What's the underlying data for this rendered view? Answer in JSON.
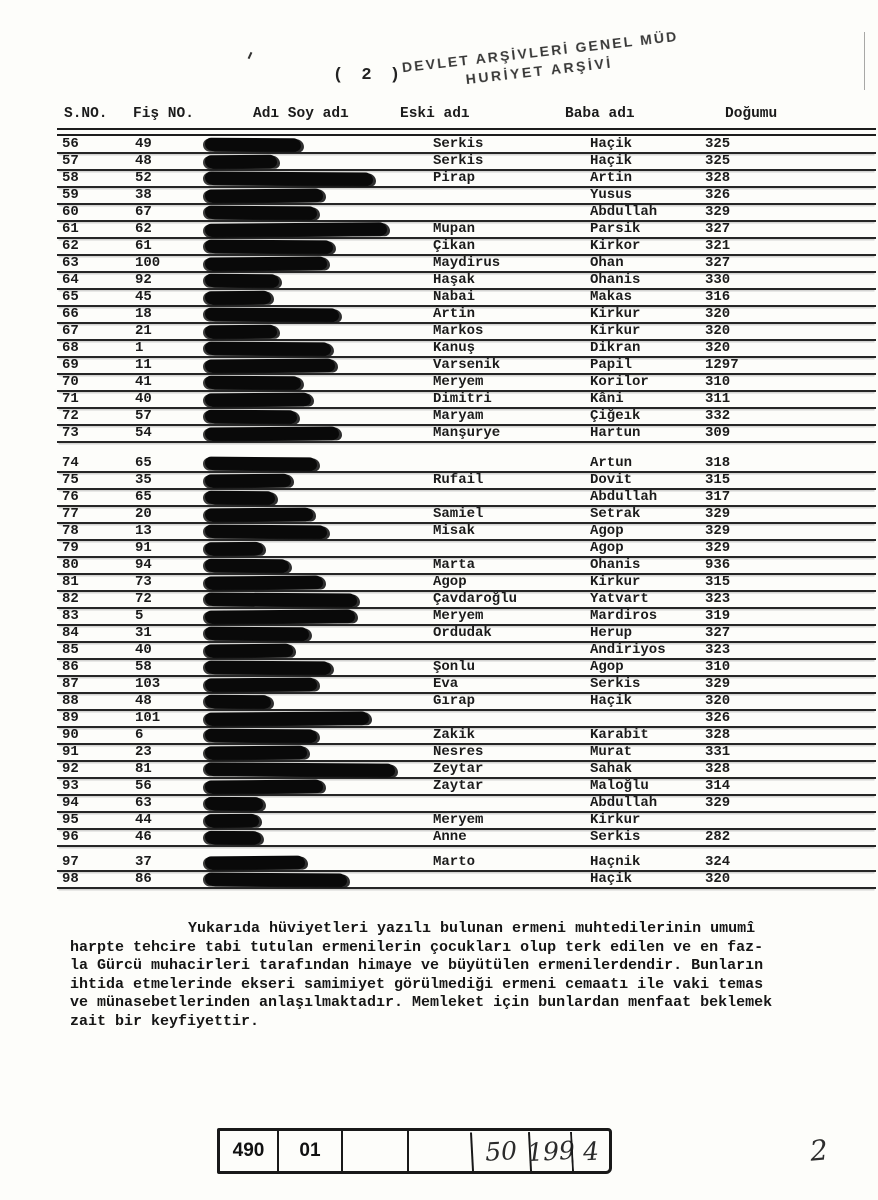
{
  "page": {
    "label": "( 2 )",
    "page_number_handwritten": "2"
  },
  "stamp": {
    "line1": "DEVLET ARŞİVLERİ GENEL MÜD",
    "line2": "HURİYET ARŞİVİ"
  },
  "table": {
    "columns": [
      "S.NO.",
      "Fiş NO.",
      "Adı Soy adı",
      "Eski adı",
      "Baba adı",
      "Doğumu"
    ],
    "rows": [
      {
        "s_no": "56",
        "fis_no": "49",
        "eski_adi": "Serkis",
        "baba_adi": "Haçik",
        "dogumu": "325",
        "redaction_width": 96,
        "gap_before": false
      },
      {
        "s_no": "57",
        "fis_no": "48",
        "eski_adi": "Serkis",
        "baba_adi": "Haçik",
        "dogumu": "325",
        "redaction_width": 72,
        "gap_before": false
      },
      {
        "s_no": "58",
        "fis_no": "52",
        "eski_adi": "Pirap",
        "baba_adi": "Artin",
        "dogumu": "328",
        "redaction_width": 168,
        "gap_before": false
      },
      {
        "s_no": "59",
        "fis_no": "38",
        "eski_adi": "",
        "baba_adi": "Yusus",
        "dogumu": "326",
        "redaction_width": 118,
        "gap_before": false
      },
      {
        "s_no": "60",
        "fis_no": "67",
        "eski_adi": "",
        "baba_adi": "Abdullah",
        "dogumu": "329",
        "redaction_width": 112,
        "gap_before": false
      },
      {
        "s_no": "61",
        "fis_no": "62",
        "eski_adi": "Mupan",
        "baba_adi": "Parsik",
        "dogumu": "327",
        "redaction_width": 182,
        "gap_before": false
      },
      {
        "s_no": "62",
        "fis_no": "61",
        "eski_adi": "Çikan",
        "baba_adi": "Kirkor",
        "dogumu": "321",
        "redaction_width": 128,
        "gap_before": false
      },
      {
        "s_no": "63",
        "fis_no": "100",
        "eski_adi": "Maydirus",
        "baba_adi": "Ohan",
        "dogumu": "327",
        "redaction_width": 122,
        "gap_before": false
      },
      {
        "s_no": "64",
        "fis_no": "92",
        "eski_adi": "Haşak",
        "baba_adi": "Ohanis",
        "dogumu": "330",
        "redaction_width": 74,
        "gap_before": false
      },
      {
        "s_no": "65",
        "fis_no": "45",
        "eski_adi": "Nabai",
        "baba_adi": "Makas",
        "dogumu": "316",
        "redaction_width": 66,
        "gap_before": false
      },
      {
        "s_no": "66",
        "fis_no": "18",
        "eski_adi": "Artin",
        "baba_adi": "Kirkur",
        "dogumu": "320",
        "redaction_width": 134,
        "gap_before": false
      },
      {
        "s_no": "67",
        "fis_no": "21",
        "eski_adi": "Markos",
        "baba_adi": "Kirkur",
        "dogumu": "320",
        "redaction_width": 72,
        "gap_before": false
      },
      {
        "s_no": "68",
        "fis_no": "1",
        "eski_adi": "Kanuş",
        "baba_adi": "Dikran",
        "dogumu": "320",
        "redaction_width": 126,
        "gap_before": false
      },
      {
        "s_no": "69",
        "fis_no": "11",
        "eski_adi": "Varsenik",
        "baba_adi": "Papil",
        "dogumu": "1297",
        "redaction_width": 130,
        "gap_before": false
      },
      {
        "s_no": "70",
        "fis_no": "41",
        "eski_adi": "Meryem",
        "baba_adi": "Korilor",
        "dogumu": "310",
        "redaction_width": 96,
        "gap_before": false
      },
      {
        "s_no": "71",
        "fis_no": "40",
        "eski_adi": "Dimitri",
        "baba_adi": "Kâni",
        "dogumu": "311",
        "redaction_width": 106,
        "gap_before": false
      },
      {
        "s_no": "72",
        "fis_no": "57",
        "eski_adi": "Maryam",
        "baba_adi": "Çiğeık",
        "dogumu": "332",
        "redaction_width": 92,
        "gap_before": false
      },
      {
        "s_no": "73",
        "fis_no": "54",
        "eski_adi": "Manşurye",
        "baba_adi": "Hartun",
        "dogumu": "309",
        "redaction_width": 134,
        "gap_before": false
      },
      {
        "s_no": "74",
        "fis_no": "65",
        "eski_adi": "",
        "baba_adi": "Artun",
        "dogumu": "318",
        "redaction_width": 112,
        "gap_before": true
      },
      {
        "s_no": "75",
        "fis_no": "35",
        "eski_adi": "Rufail",
        "baba_adi": "Dovit",
        "dogumu": "315",
        "redaction_width": 86,
        "gap_before": false
      },
      {
        "s_no": "76",
        "fis_no": "65",
        "eski_adi": "",
        "baba_adi": "Abdullah",
        "dogumu": "317",
        "redaction_width": 70,
        "gap_before": false
      },
      {
        "s_no": "77",
        "fis_no": "20",
        "eski_adi": "Samiel",
        "baba_adi": "Setrak",
        "dogumu": "329",
        "redaction_width": 108,
        "gap_before": false
      },
      {
        "s_no": "78",
        "fis_no": "13",
        "eski_adi": "Misak",
        "baba_adi": "Agop",
        "dogumu": "329",
        "redaction_width": 122,
        "gap_before": false
      },
      {
        "s_no": "79",
        "fis_no": "91",
        "eski_adi": "",
        "baba_adi": "Agop",
        "dogumu": "329",
        "redaction_width": 58,
        "gap_before": false
      },
      {
        "s_no": "80",
        "fis_no": "94",
        "eski_adi": "Marta",
        "baba_adi": "Ohanis",
        "dogumu": "936",
        "redaction_width": 84,
        "gap_before": false
      },
      {
        "s_no": "81",
        "fis_no": "73",
        "eski_adi": "Agop",
        "baba_adi": "Kirkur",
        "dogumu": "315",
        "redaction_width": 118,
        "gap_before": false
      },
      {
        "s_no": "82",
        "fis_no": "72",
        "eski_adi": "Çavdaroğlu",
        "baba_adi": "Yatvart",
        "dogumu": "323",
        "redaction_width": 152,
        "gap_before": false
      },
      {
        "s_no": "83",
        "fis_no": "5",
        "eski_adi": "Meryem",
        "baba_adi": "Mardiros",
        "dogumu": "319",
        "redaction_width": 150,
        "gap_before": false
      },
      {
        "s_no": "84",
        "fis_no": "31",
        "eski_adi": "Ordudak",
        "baba_adi": "Herup",
        "dogumu": "327",
        "redaction_width": 104,
        "gap_before": false
      },
      {
        "s_no": "85",
        "fis_no": "40",
        "eski_adi": "",
        "baba_adi": "Andiriyos",
        "dogumu": "323",
        "redaction_width": 88,
        "gap_before": false
      },
      {
        "s_no": "86",
        "fis_no": "58",
        "eski_adi": "Şonlu",
        "baba_adi": "Agop",
        "dogumu": "310",
        "redaction_width": 126,
        "gap_before": false
      },
      {
        "s_no": "87",
        "fis_no": "103",
        "eski_adi": "Eva",
        "baba_adi": "Serkis",
        "dogumu": "329",
        "redaction_width": 112,
        "gap_before": false
      },
      {
        "s_no": "88",
        "fis_no": "48",
        "eski_adi": "Gırap",
        "baba_adi": "Haçik",
        "dogumu": "320",
        "redaction_width": 66,
        "gap_before": false
      },
      {
        "s_no": "89",
        "fis_no": "101",
        "eski_adi": "",
        "baba_adi": "",
        "dogumu": "326",
        "redaction_width": 164,
        "gap_before": false
      },
      {
        "s_no": "90",
        "fis_no": "6",
        "eski_adi": "Zakik",
        "baba_adi": "Karabit",
        "dogumu": "328",
        "redaction_width": 112,
        "gap_before": false
      },
      {
        "s_no": "91",
        "fis_no": "23",
        "eski_adi": "Nesres",
        "baba_adi": "Murat",
        "dogumu": "331",
        "redaction_width": 102,
        "gap_before": false
      },
      {
        "s_no": "92",
        "fis_no": "81",
        "eski_adi": "Zeytar",
        "baba_adi": "Sahak",
        "dogumu": "328",
        "redaction_width": 190,
        "gap_before": false
      },
      {
        "s_no": "93",
        "fis_no": "56",
        "eski_adi": "Zaytar",
        "baba_adi": "Maloğlu",
        "dogumu": "314",
        "redaction_width": 118,
        "gap_before": false
      },
      {
        "s_no": "94",
        "fis_no": "63",
        "eski_adi": "",
        "baba_adi": "Abdullah",
        "dogumu": "329",
        "redaction_width": 58,
        "gap_before": false
      },
      {
        "s_no": "95",
        "fis_no": "44",
        "eski_adi": "Meryem",
        "baba_adi": "Kirkur",
        "dogumu": "",
        "redaction_width": 54,
        "gap_before": false
      },
      {
        "s_no": "96",
        "fis_no": "46",
        "eski_adi": "Anne",
        "baba_adi": "Serkis",
        "dogumu": "282",
        "redaction_width": 56,
        "gap_before": false
      },
      {
        "s_no": "97",
        "fis_no": "37",
        "eski_adi": "Marto",
        "baba_adi": "Haçnik",
        "dogumu": "324",
        "redaction_width": 100,
        "gap_before": true
      },
      {
        "s_no": "98",
        "fis_no": "86",
        "eski_adi": "",
        "baba_adi": "Haçik",
        "dogumu": "320",
        "redaction_width": 142,
        "gap_before": false
      }
    ]
  },
  "paragraph": {
    "lines": [
      "Yukarıda hüviyetleri yazılı bulunan ermeni muhtedilerinin umumî",
      "harpte tehcire tabi tutulan ermenilerin çocukları olup terk edilen ve en faz-",
      "la Gürcü muhacirleri tarafından himaye ve büyütülen ermenilerdendir. Bunların",
      "ihtida etmelerinde ekseri samimiyet görülmediği ermeni cemaatı ile vaki temas",
      "ve münasebetlerinden anlaşılmaktadır. Memleket için bunlardan menfaat beklemek",
      "zait bir keyfiyettir."
    ]
  },
  "footer_box": {
    "cells": [
      "490",
      "01",
      "",
      "",
      "50",
      "199",
      "4"
    ]
  },
  "colors": {
    "ink": "#1b1b1b",
    "paper": "#fdfdfa",
    "redaction": "#090909"
  }
}
